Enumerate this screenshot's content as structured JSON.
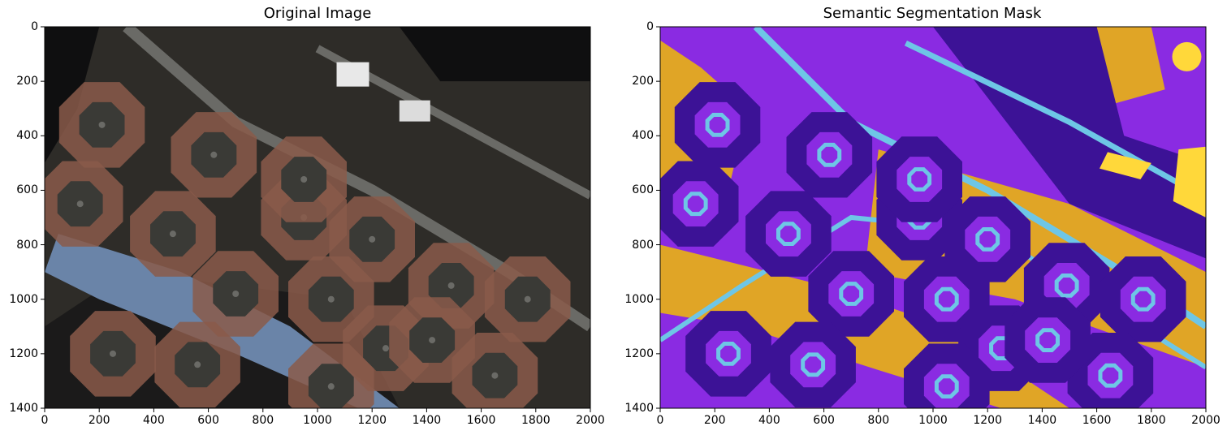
{
  "panels": [
    {
      "title": "Original Image",
      "xticks": [
        "0",
        "200",
        "400",
        "600",
        "800",
        "1000",
        "1200",
        "1400",
        "1600",
        "1800",
        "2000"
      ],
      "yticks": [
        "0",
        "200",
        "400",
        "600",
        "800",
        "1000",
        "1200",
        "1400"
      ]
    },
    {
      "title": "Semantic Segmentation Mask",
      "xticks": [
        "0",
        "200",
        "400",
        "600",
        "800",
        "1000",
        "1200",
        "1400",
        "1600",
        "1800",
        "2000"
      ],
      "yticks": [
        "0",
        "200",
        "400",
        "600",
        "800",
        "1000",
        "1200",
        "1400"
      ]
    }
  ],
  "axis_range": {
    "x": [
      0,
      2000
    ],
    "y": [
      0,
      1400
    ]
  },
  "mask_colors": {
    "background": "#8a2be2",
    "building": "#3c1296",
    "road": "#6ec6e6",
    "water": "#e0a526",
    "other": "#ffd83a"
  },
  "photo_colors": {
    "ground": "#2e2c28",
    "water": "#0f0f10",
    "river": "#6a84a8",
    "roof": "#8a5a4a",
    "road": "#6a6a66"
  }
}
